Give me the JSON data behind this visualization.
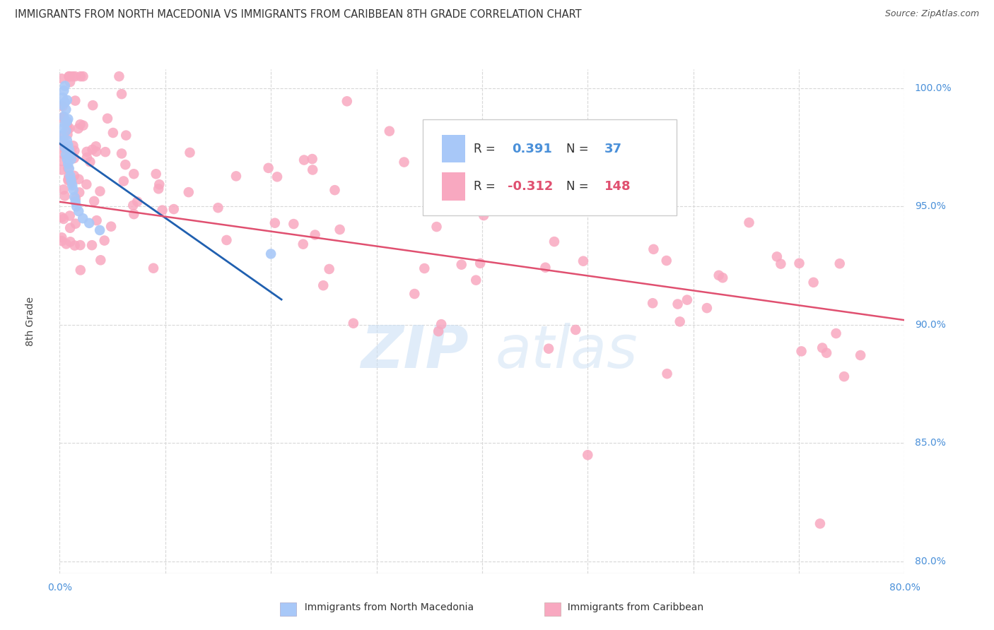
{
  "title": "IMMIGRANTS FROM NORTH MACEDONIA VS IMMIGRANTS FROM CARIBBEAN 8TH GRADE CORRELATION CHART",
  "source": "Source: ZipAtlas.com",
  "ylabel": "8th Grade",
  "blue_R": 0.391,
  "blue_N": 37,
  "pink_R": -0.312,
  "pink_N": 148,
  "xlim": [
    0.0,
    0.8
  ],
  "ylim": [
    0.795,
    1.008
  ],
  "yticks": [
    0.8,
    0.85,
    0.9,
    0.95,
    1.0
  ],
  "xtick_positions": [
    0.0,
    0.1,
    0.2,
    0.3,
    0.4,
    0.5,
    0.6,
    0.7,
    0.8
  ],
  "blue_color": "#a8c8f8",
  "pink_color": "#f8a8c0",
  "blue_line_color": "#2060b0",
  "pink_line_color": "#e05070",
  "grid_color": "#d8d8d8",
  "axis_color": "#4a90d9",
  "legend_label_blue": "Immigrants from North Macedonia",
  "legend_label_pink": "Immigrants from Caribbean",
  "blue_scatter_x": [
    0.002,
    0.002,
    0.003,
    0.003,
    0.004,
    0.004,
    0.004,
    0.005,
    0.005,
    0.005,
    0.005,
    0.006,
    0.006,
    0.006,
    0.007,
    0.007,
    0.007,
    0.007,
    0.008,
    0.008,
    0.008,
    0.009,
    0.009,
    0.01,
    0.01,
    0.011,
    0.011,
    0.012,
    0.013,
    0.014,
    0.015,
    0.016,
    0.018,
    0.022,
    0.028,
    0.038,
    0.2
  ],
  "blue_scatter_y": [
    0.98,
    0.993,
    0.983,
    0.996,
    0.978,
    0.988,
    0.999,
    0.975,
    0.985,
    0.994,
    1.001,
    0.972,
    0.982,
    0.991,
    0.97,
    0.978,
    0.986,
    0.995,
    0.968,
    0.976,
    0.987,
    0.966,
    0.974,
    0.963,
    0.972,
    0.961,
    0.97,
    0.959,
    0.957,
    0.954,
    0.952,
    0.95,
    0.948,
    0.945,
    0.943,
    0.94,
    0.93
  ],
  "pink_line_x0": 0.0,
  "pink_line_y0": 0.952,
  "pink_line_x1": 0.8,
  "pink_line_y1": 0.902
}
